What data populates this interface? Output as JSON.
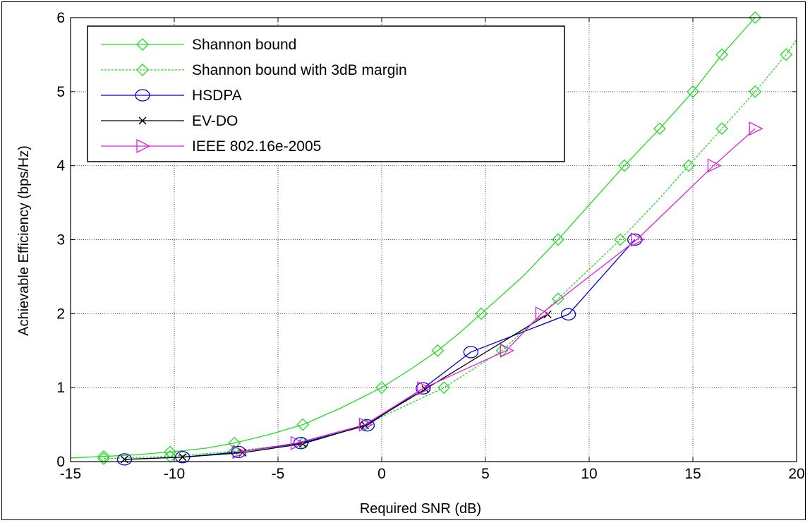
{
  "chart_data": {
    "type": "line",
    "title": "",
    "xlabel": "Required SNR (dB)",
    "ylabel": "Achievable Efficiency (bps/Hz)",
    "xlim": [
      -15,
      20
    ],
    "ylim": [
      0,
      6
    ],
    "xticks": [
      -15,
      -10,
      -5,
      0,
      5,
      10,
      15,
      20
    ],
    "yticks": [
      0,
      1,
      2,
      3,
      4,
      5,
      6
    ],
    "xtick_labels": [
      "-15",
      "-10",
      "-5",
      "0",
      "5",
      "10",
      "15",
      "20"
    ],
    "ytick_labels": [
      "0",
      "1",
      "2",
      "3",
      "4",
      "5",
      "6"
    ],
    "grid": true,
    "legend_position": "top-left",
    "series": [
      {
        "name": "Shannon bound",
        "color": "#22dd22",
        "dashed": false,
        "marker": "diamond",
        "curve": {
          "x": [
            -15.0,
            -13.4,
            -12.0,
            -10.2,
            -8.5,
            -7.1,
            -5.5,
            -3.8,
            -2.0,
            0.0,
            1.4,
            2.7,
            3.8,
            4.8,
            6.8,
            8.5,
            10.1,
            11.7,
            13.4,
            15.0,
            16.4,
            18.0
          ],
          "y": [
            0.05,
            0.07,
            0.09,
            0.13,
            0.18,
            0.25,
            0.36,
            0.5,
            0.72,
            1.0,
            1.25,
            1.5,
            1.75,
            2.0,
            2.5,
            3.0,
            3.5,
            4.0,
            4.5,
            5.0,
            5.5,
            6.0
          ]
        },
        "markers": {
          "x": [
            -13.4,
            -10.2,
            -7.1,
            -3.8,
            0.0,
            2.7,
            4.8,
            8.5,
            11.7,
            13.4,
            15.0,
            16.4,
            18.0
          ],
          "y": [
            0.07,
            0.13,
            0.25,
            0.5,
            1.0,
            1.5,
            2.0,
            3.0,
            4.0,
            4.5,
            5.0,
            5.5,
            6.0
          ]
        }
      },
      {
        "name": "Shannon bound with 3dB margin",
        "color": "#22dd22",
        "dashed": true,
        "marker": "diamond",
        "curve": {
          "x": [
            -13.4,
            -10.2,
            -7.1,
            -3.8,
            -0.8,
            3.0,
            5.8,
            8.5,
            11.5,
            13.2,
            14.8,
            16.4,
            18.0,
            19.5,
            20.0
          ],
          "y": [
            0.04,
            0.07,
            0.14,
            0.25,
            0.5,
            1.0,
            1.5,
            2.2,
            3.0,
            3.5,
            4.0,
            4.5,
            5.0,
            5.5,
            5.7
          ]
        },
        "markers": {
          "x": [
            -13.4,
            -10.2,
            -7.1,
            -3.8,
            -0.8,
            3.0,
            5.8,
            8.5,
            11.5,
            14.8,
            16.4,
            18.0,
            19.5
          ],
          "y": [
            0.04,
            0.07,
            0.14,
            0.25,
            0.5,
            1.0,
            1.5,
            2.2,
            3.0,
            4.0,
            4.5,
            5.0,
            5.5
          ]
        }
      },
      {
        "name": "HSDPA",
        "color": "#0000cc",
        "dashed": false,
        "marker": "circle",
        "curve": {
          "x": [
            -12.4,
            -9.6,
            -6.9,
            -3.9,
            -0.7,
            2.0,
            4.3,
            9.0,
            12.2
          ],
          "y": [
            0.03,
            0.06,
            0.13,
            0.25,
            0.49,
            0.99,
            1.48,
            1.99,
            3.0
          ]
        },
        "markers": {
          "x": [
            -12.4,
            -9.6,
            -6.9,
            -3.9,
            -0.7,
            2.0,
            4.3,
            9.0,
            12.2
          ],
          "y": [
            0.03,
            0.06,
            0.13,
            0.25,
            0.49,
            0.99,
            1.48,
            1.99,
            3.0
          ]
        }
      },
      {
        "name": "EV-DO",
        "color": "#000000",
        "dashed": false,
        "marker": "cross",
        "curve": {
          "x": [
            -12.4,
            -9.6,
            -6.7,
            -3.8,
            -0.8,
            2.1,
            8.0
          ],
          "y": [
            0.03,
            0.06,
            0.12,
            0.24,
            0.49,
            0.98,
            1.99
          ]
        },
        "markers": {
          "x": [
            -12.4,
            -9.6,
            -6.7,
            -3.8,
            -0.8,
            2.1,
            8.0
          ],
          "y": [
            0.03,
            0.06,
            0.12,
            0.24,
            0.49,
            0.98,
            1.99
          ]
        }
      },
      {
        "name": "IEEE 802.16e-2005",
        "color": "#dd22dd",
        "dashed": false,
        "marker": "triangle-right",
        "curve": {
          "x": [
            -6.9,
            -4.1,
            -0.8,
            2.0,
            6.0,
            7.7,
            12.3,
            16.0,
            18.0
          ],
          "y": [
            0.13,
            0.25,
            0.5,
            0.99,
            1.5,
            2.0,
            3.0,
            4.0,
            4.5
          ]
        },
        "markers": {
          "x": [
            -6.9,
            -4.1,
            -0.8,
            2.0,
            6.0,
            7.7,
            12.3,
            16.0,
            18.0
          ],
          "y": [
            0.13,
            0.25,
            0.5,
            0.99,
            1.5,
            2.0,
            3.0,
            4.0,
            4.5
          ]
        }
      }
    ]
  }
}
